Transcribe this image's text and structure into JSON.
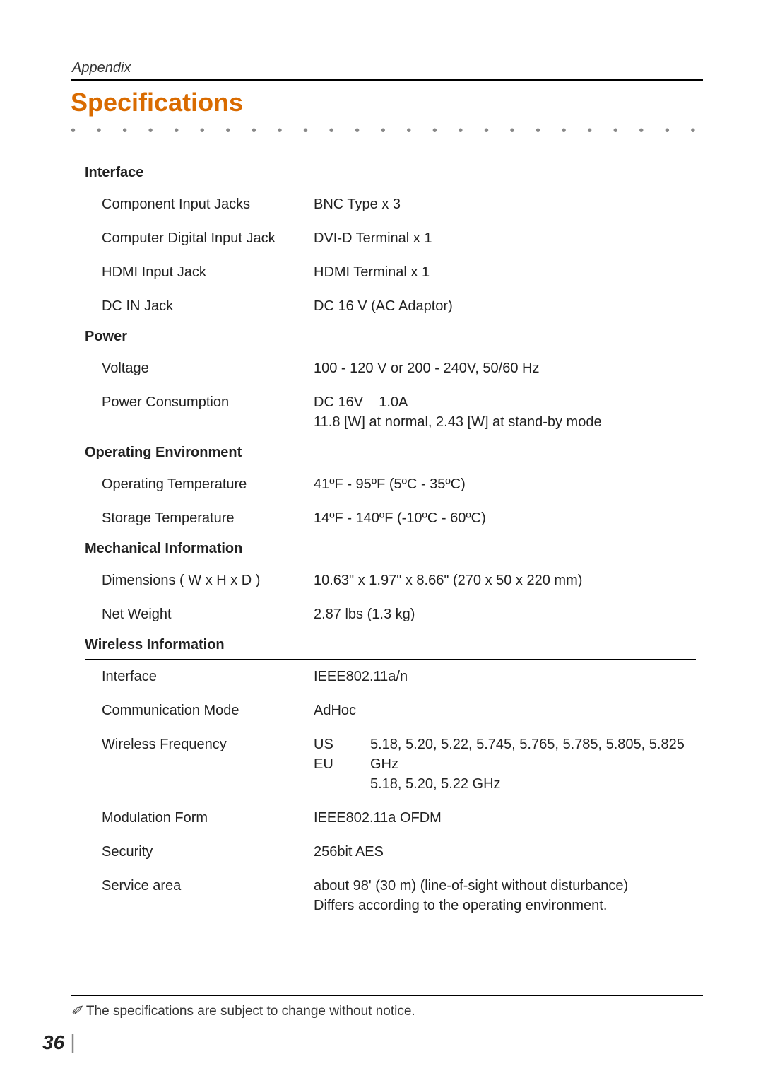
{
  "header": {
    "appendix": "Appendix",
    "title": "Specifications"
  },
  "sections": [
    {
      "head": "Interface",
      "rows": [
        {
          "label": "Component Input Jacks",
          "value": "BNC Type x 3"
        },
        {
          "label": "Computer Digital Input Jack",
          "value": "DVI-D Terminal x 1"
        },
        {
          "label": "HDMI Input Jack",
          "value": "HDMI Terminal x 1"
        },
        {
          "label": "DC IN Jack",
          "value": "DC 16 V (AC Adaptor)"
        }
      ]
    },
    {
      "head": "Power",
      "rows": [
        {
          "label": "Voltage",
          "value": "100 - 120 V or 200 - 240V, 50/60 Hz"
        },
        {
          "label": "Power Consumption",
          "value": "DC 16V    1.0A\n11.8 [W] at normal, 2.43 [W] at stand-by mode"
        }
      ]
    },
    {
      "head": "Operating Environment",
      "rows": [
        {
          "label": "Operating Temperature",
          "value": "41ºF - 95ºF (5ºC - 35ºC)"
        },
        {
          "label": "Storage Temperature",
          "value": "14ºF - 140ºF (-10ºC - 60ºC)"
        }
      ]
    },
    {
      "head": "Mechanical Information",
      "rows": [
        {
          "label": "Dimensions ( W x H  x D )",
          "value": "10.63\" x 1.97\" x 8.66\" (270 x 50 x 220 mm)"
        },
        {
          "label": "Net Weight",
          "value": "2.87 lbs (1.3 kg)"
        }
      ]
    },
    {
      "head": "Wireless Information",
      "rows": [
        {
          "label": "Interface",
          "value": "IEEE802.11a/n"
        },
        {
          "label": "Communication Mode",
          "value": "AdHoc"
        },
        {
          "label": "Wireless Frequency",
          "subtable": {
            "left": [
              "US",
              "EU"
            ],
            "right": [
              "5.18, 5.20, 5.22, 5.745, 5.765, 5.785, 5.805, 5.825 GHz",
              "5.18, 5.20, 5.22 GHz"
            ]
          }
        },
        {
          "label": "Modulation Form",
          "value": "IEEE802.11a OFDM"
        },
        {
          "label": "Security",
          "value": "256bit AES"
        },
        {
          "label": "Service area",
          "value": "about 98' (30 m) (line-of-sight without disturbance)\nDiffers according to the operating environment."
        }
      ]
    }
  ],
  "footnote": "The specifications are subject to change without notice.",
  "page_number": "36",
  "styling": {
    "title_color": "#d96b00",
    "text_color": "#222222",
    "dot_color": "#888888",
    "rule_color": "#000000",
    "body_fontsize": 20,
    "title_fontsize": 36,
    "pagenum_fontsize": 28
  }
}
